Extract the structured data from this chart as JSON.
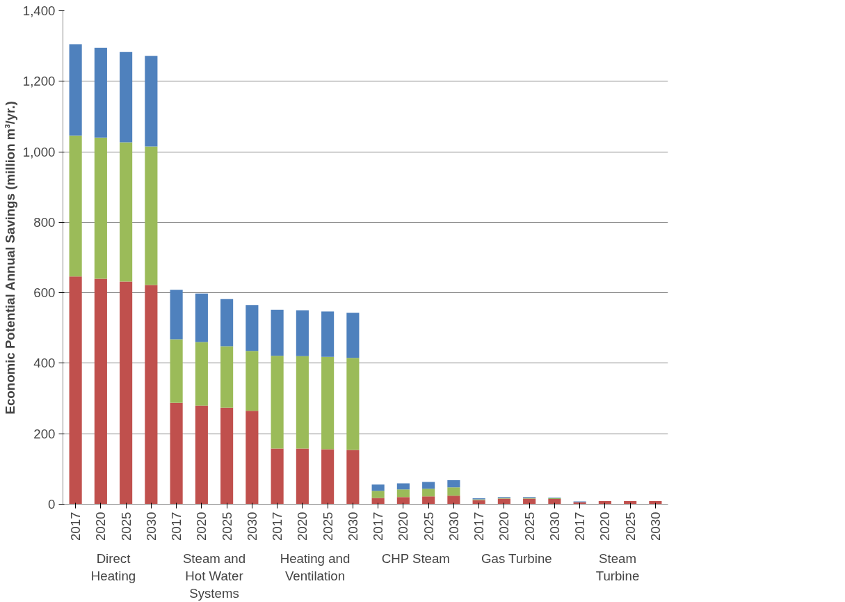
{
  "chart_data": {
    "type": "bar",
    "stacked": true,
    "ylabel": "Economic Potential Annual Savings (million m³/yr.)",
    "categories": [
      "2017",
      "2020",
      "2025",
      "2030",
      "2017",
      "2020",
      "2025",
      "2030",
      "2017",
      "2020",
      "2025",
      "2030",
      "2017",
      "2020",
      "2025",
      "2030",
      "2017",
      "2020",
      "2025",
      "2030",
      "2017",
      "2020",
      "2025",
      "2030"
    ],
    "annotations": [
      "Direct Heating",
      "Steam and Hot Water Systems",
      "Heating and Ventilation",
      "CHP Steam",
      "Gas Turbine",
      "Steam Turbine"
    ],
    "series": [
      {
        "color": "#c0504d",
        "values": [
          646,
          640,
          632,
          622,
          288,
          280,
          274,
          265,
          158,
          158,
          156,
          154,
          18,
          20,
          22,
          24,
          12,
          16,
          16,
          15,
          6,
          9,
          9,
          9
        ]
      },
      {
        "color": "#9bbb59",
        "values": [
          400,
          400,
          395,
          393,
          180,
          180,
          174,
          170,
          263,
          262,
          262,
          261,
          20,
          22,
          22,
          24,
          2,
          2,
          2,
          2,
          0,
          0,
          0,
          0
        ]
      },
      {
        "color": "#4f81bd",
        "values": [
          259,
          255,
          256,
          257,
          140,
          138,
          134,
          130,
          131,
          130,
          129,
          128,
          18,
          17,
          19,
          20,
          3,
          2,
          2,
          2,
          2,
          0,
          0,
          0
        ]
      }
    ],
    "ylim": [
      0,
      1400
    ],
    "yticks": [
      0,
      200,
      400,
      600,
      800,
      {
        "value": 1000,
        "label": "1,000"
      },
      {
        "value": 1200,
        "label": "1,200"
      },
      {
        "value": 1400,
        "label": "1,400"
      }
    ],
    "grid": "y"
  }
}
